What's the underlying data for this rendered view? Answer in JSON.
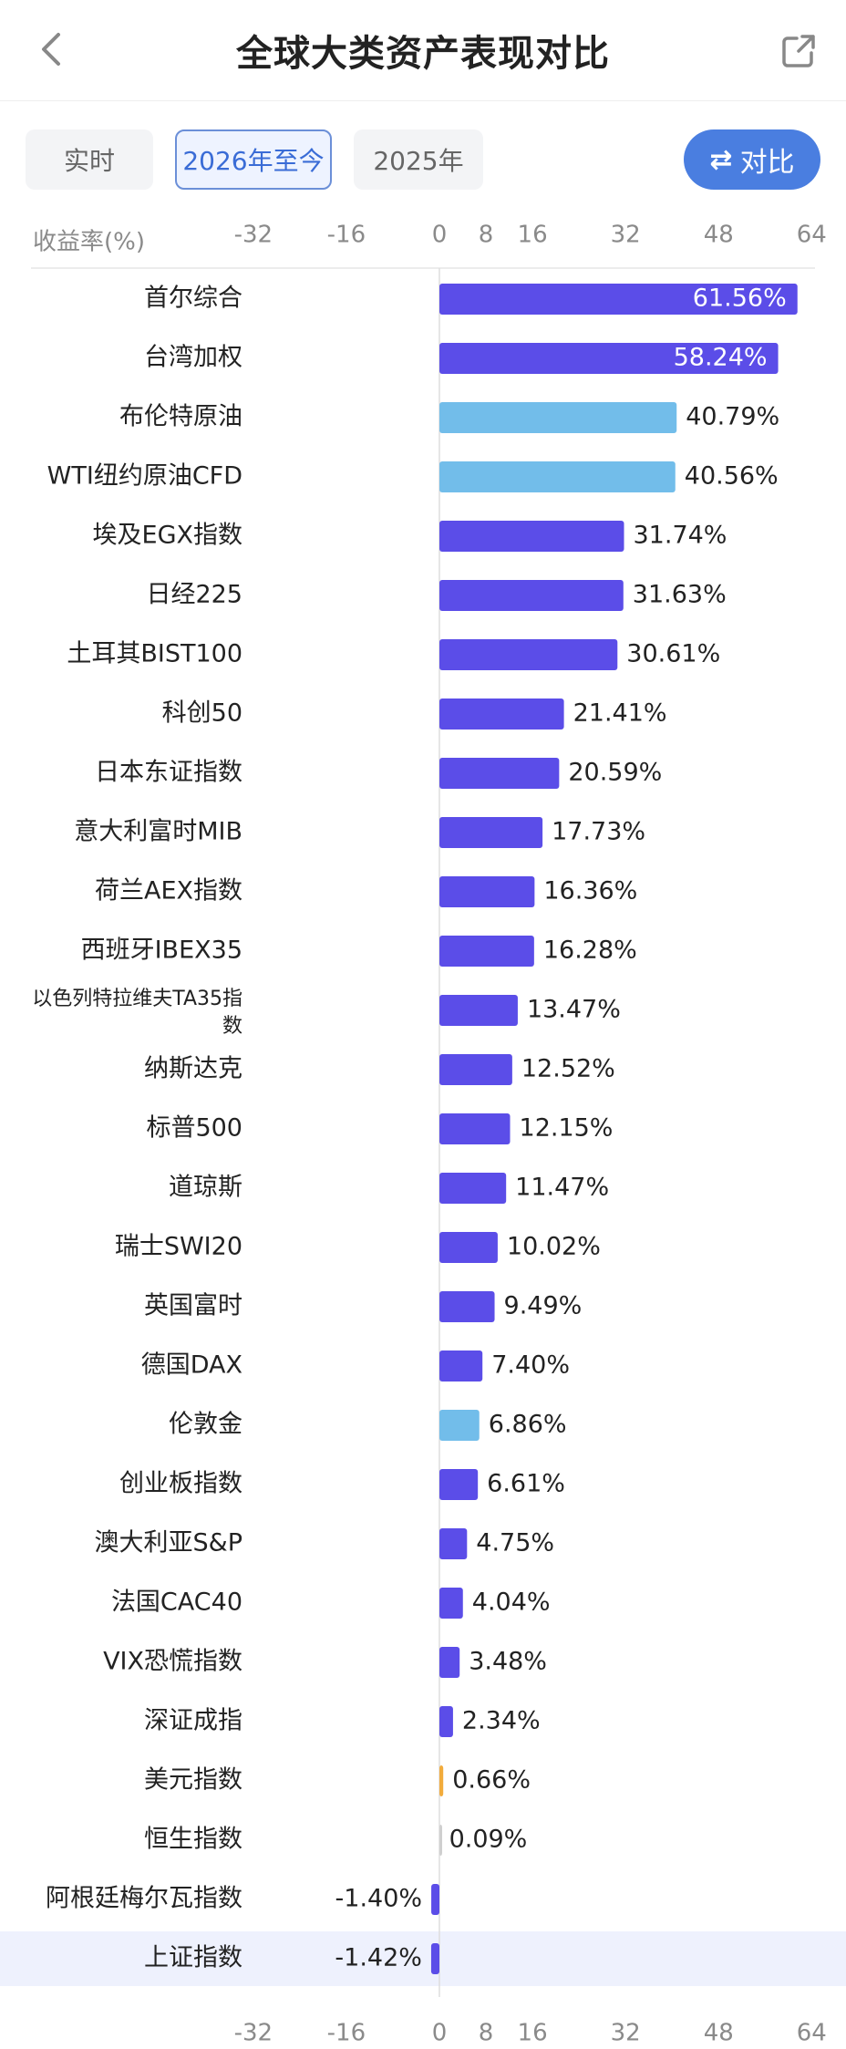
{
  "header": {
    "title": "全球大类资产表现对比",
    "back_icon": "chevron-left-icon",
    "share_icon": "share-icon"
  },
  "tabs": [
    {
      "label": "实时",
      "active": false
    },
    {
      "label": "2026年至今",
      "active": true
    },
    {
      "label": "2025年",
      "active": false
    }
  ],
  "compare_button": {
    "label": "对比",
    "icon": "swap-arrows-icon"
  },
  "colors": {
    "purple": "#5b4de8",
    "blue": "#72bdea",
    "orange": "#f2ac3c",
    "gray": "#cfcfcf",
    "highlight_row": "#eef1fd"
  },
  "chart_data": {
    "type": "bar",
    "orientation": "horizontal",
    "ylabel": "收益率(%)",
    "x_ticks": [
      -32,
      -16,
      0,
      8,
      16,
      32,
      48,
      64
    ],
    "xlim": [
      -32,
      64
    ],
    "highlighted_category": "上证指数",
    "categories": [
      "首尔综合",
      "台湾加权",
      "布伦特原油",
      "WTI纽约原油CFD",
      "埃及EGX指数",
      "日经225",
      "土耳其BIST100",
      "科创50",
      "日本东证指数",
      "意大利富时MIB",
      "荷兰AEX指数",
      "西班牙IBEX35",
      "以色列特拉维夫TA35指数",
      "纳斯达克",
      "标普500",
      "道琼斯",
      "瑞士SWI20",
      "英国富时",
      "德国DAX",
      "伦敦金",
      "创业板指数",
      "澳大利亚S&P",
      "法国CAC40",
      "VIX恐慌指数",
      "深证成指",
      "美元指数",
      "恒生指数",
      "阿根廷梅尔瓦指数",
      "上证指数"
    ],
    "values": [
      61.56,
      58.24,
      40.79,
      40.56,
      31.74,
      31.63,
      30.61,
      21.41,
      20.59,
      17.73,
      16.36,
      16.28,
      13.47,
      12.52,
      12.15,
      11.47,
      10.02,
      9.49,
      7.4,
      6.86,
      6.61,
      4.75,
      4.04,
      3.48,
      2.34,
      0.66,
      0.09,
      -1.4,
      -1.42
    ],
    "labels": [
      "61.56%",
      "58.24%",
      "40.79%",
      "40.56%",
      "31.74%",
      "31.63%",
      "30.61%",
      "21.41%",
      "20.59%",
      "17.73%",
      "16.36%",
      "16.28%",
      "13.47%",
      "12.52%",
      "12.15%",
      "11.47%",
      "10.02%",
      "9.49%",
      "7.40%",
      "6.86%",
      "6.61%",
      "4.75%",
      "4.04%",
      "3.48%",
      "2.34%",
      "0.66%",
      "0.09%",
      "-1.40%",
      "-1.42%"
    ],
    "bar_colors": [
      "purple",
      "purple",
      "blue",
      "blue",
      "purple",
      "purple",
      "purple",
      "purple",
      "purple",
      "purple",
      "purple",
      "purple",
      "purple",
      "purple",
      "purple",
      "purple",
      "purple",
      "purple",
      "purple",
      "blue",
      "purple",
      "purple",
      "purple",
      "purple",
      "purple",
      "orange",
      "gray",
      "purple",
      "purple"
    ]
  }
}
